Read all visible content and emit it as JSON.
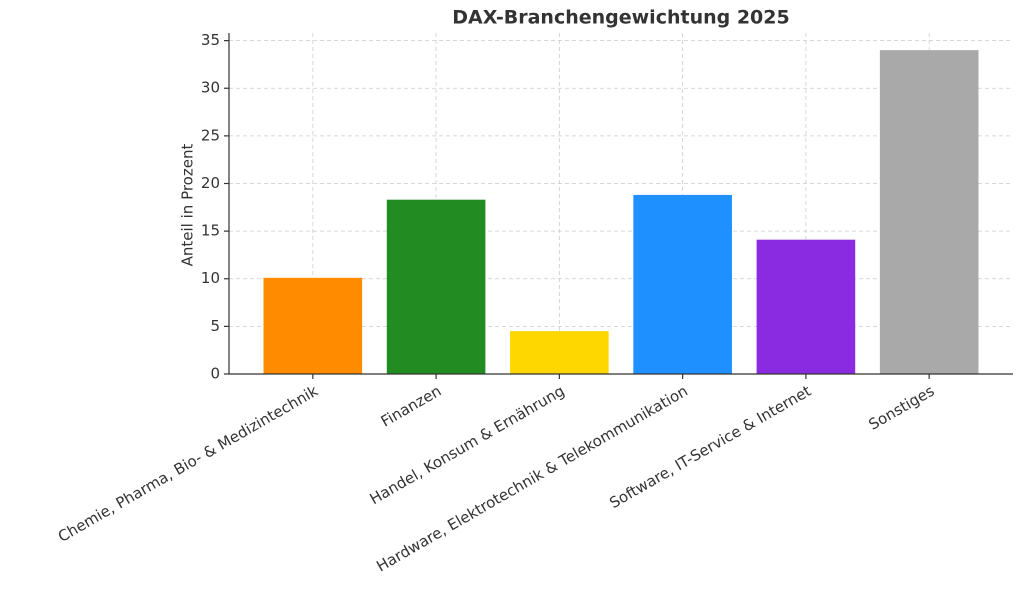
{
  "chart_data": {
    "type": "bar",
    "title": "DAX-Branchengewichtung 2025",
    "y_label": "Anteil in Prozent",
    "categories": [
      "Chemie, Pharma, Bio- & Medizintechnik",
      "Finanzen",
      "Handel, Konsum & Ernährung",
      "Hardware, Elektrotechnik & Telekommunikation",
      "Software, IT-Service & Internet",
      "Sonstiges"
    ],
    "values": [
      10.1,
      18.3,
      4.5,
      18.8,
      14.1,
      34.0
    ],
    "colors": [
      "#ff8c00",
      "#228b22",
      "#ffd700",
      "#1e90ff",
      "#8a2be2",
      "#a9a9a9"
    ],
    "ylim": [
      0,
      35.8
    ],
    "yticks": [
      0,
      5,
      10,
      15,
      20,
      25,
      30,
      35
    ],
    "grid": true
  }
}
